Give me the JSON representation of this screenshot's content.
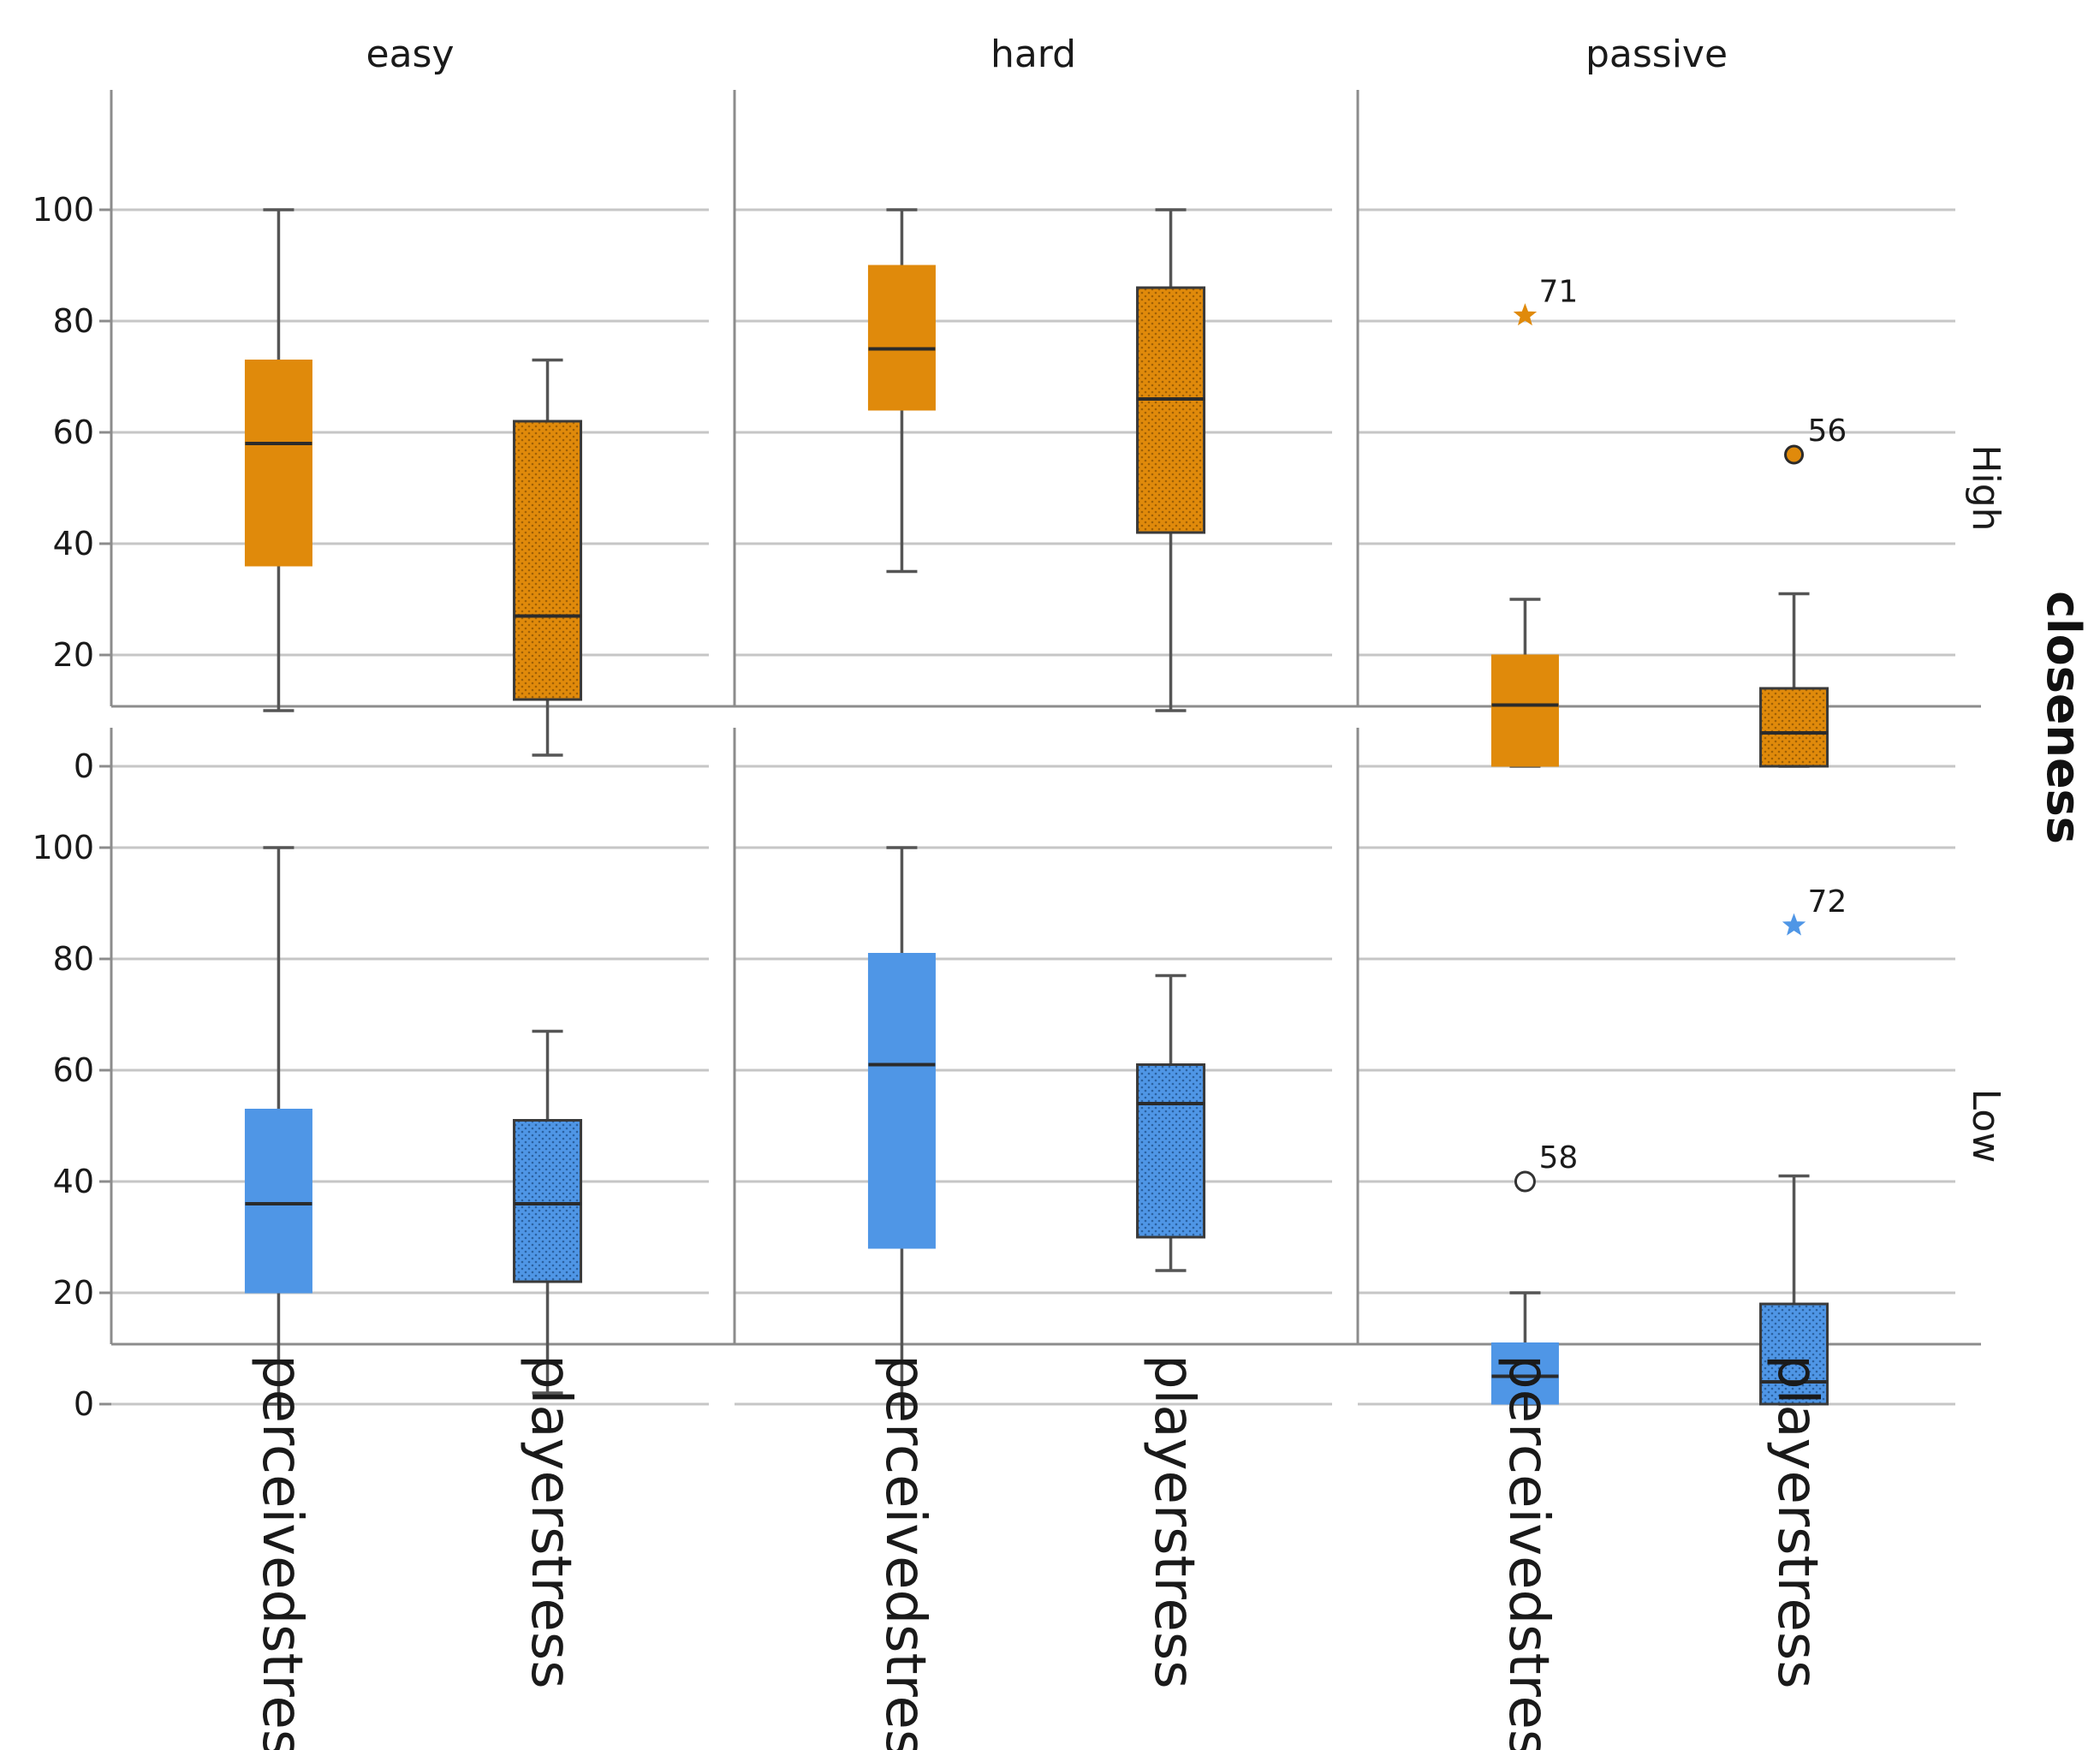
{
  "chart_data": {
    "type": "boxplot",
    "title": "",
    "column_facet_labels": [
      "easy",
      "hard",
      "passive"
    ],
    "row_facet_title": "closeness",
    "row_facet_labels": [
      "High",
      "Low"
    ],
    "categories": [
      "perceivedstress",
      "playerstress"
    ],
    "y_ticks": [
      "0",
      "20",
      "40",
      "60",
      "80",
      "100"
    ],
    "ylim": [
      -5,
      105
    ],
    "grid": true,
    "colors": {
      "High": "#e08a0b",
      "Low": "#4f96e6",
      "whisker": "#555555",
      "median": "#2b2b2b",
      "grid": "#c6c6c6",
      "axis": "#8c8c8c"
    },
    "panels": [
      {
        "row": "High",
        "col": "easy",
        "boxes": [
          {
            "category": "perceivedstress",
            "min": 10,
            "q1": 36,
            "median": 58,
            "q3": 73,
            "max": 100,
            "patterned": false
          },
          {
            "category": "playerstress",
            "min": 2,
            "q1": 12,
            "median": 27,
            "q3": 62,
            "max": 73,
            "patterned": true
          }
        ],
        "outliers": []
      },
      {
        "row": "High",
        "col": "hard",
        "boxes": [
          {
            "category": "perceivedstress",
            "min": 35,
            "q1": 64,
            "median": 75,
            "q3": 90,
            "max": 100,
            "patterned": false
          },
          {
            "category": "playerstress",
            "min": 10,
            "q1": 42,
            "median": 66,
            "q3": 86,
            "max": 100,
            "patterned": true
          }
        ],
        "outliers": []
      },
      {
        "row": "High",
        "col": "passive",
        "boxes": [
          {
            "category": "perceivedstress",
            "min": 0,
            "q1": 0,
            "median": 11,
            "q3": 20,
            "max": 30,
            "patterned": false
          },
          {
            "category": "playerstress",
            "min": 0,
            "q1": 0,
            "median": 6,
            "q3": 14,
            "max": 31,
            "patterned": true
          }
        ],
        "outliers": [
          {
            "category": "perceivedstress",
            "value": 81,
            "marker": "star",
            "label": "71"
          },
          {
            "category": "playerstress",
            "value": 56,
            "marker": "circle-filled",
            "label": "56"
          }
        ]
      },
      {
        "row": "Low",
        "col": "easy",
        "boxes": [
          {
            "category": "perceivedstress",
            "min": 0,
            "q1": 20,
            "median": 36,
            "q3": 53,
            "max": 100,
            "patterned": false
          },
          {
            "category": "playerstress",
            "min": 2,
            "q1": 22,
            "median": 36,
            "q3": 51,
            "max": 67,
            "patterned": true
          }
        ],
        "outliers": []
      },
      {
        "row": "Low",
        "col": "hard",
        "boxes": [
          {
            "category": "perceivedstress",
            "min": 0,
            "q1": 28,
            "median": 61,
            "q3": 81,
            "max": 100,
            "patterned": false
          },
          {
            "category": "playerstress",
            "min": 24,
            "q1": 30,
            "median": 54,
            "q3": 61,
            "max": 77,
            "patterned": true
          }
        ],
        "outliers": []
      },
      {
        "row": "Low",
        "col": "passive",
        "boxes": [
          {
            "category": "perceivedstress",
            "min": 0,
            "q1": 0,
            "median": 5,
            "q3": 11,
            "max": 20,
            "patterned": false
          },
          {
            "category": "playerstress",
            "min": 0,
            "q1": 0,
            "median": 4,
            "q3": 18,
            "max": 41,
            "patterned": true
          }
        ],
        "outliers": [
          {
            "category": "perceivedstress",
            "value": 40,
            "marker": "circle-open",
            "label": "58"
          },
          {
            "category": "playerstress",
            "value": 86,
            "marker": "star",
            "label": "72"
          }
        ]
      }
    ]
  }
}
